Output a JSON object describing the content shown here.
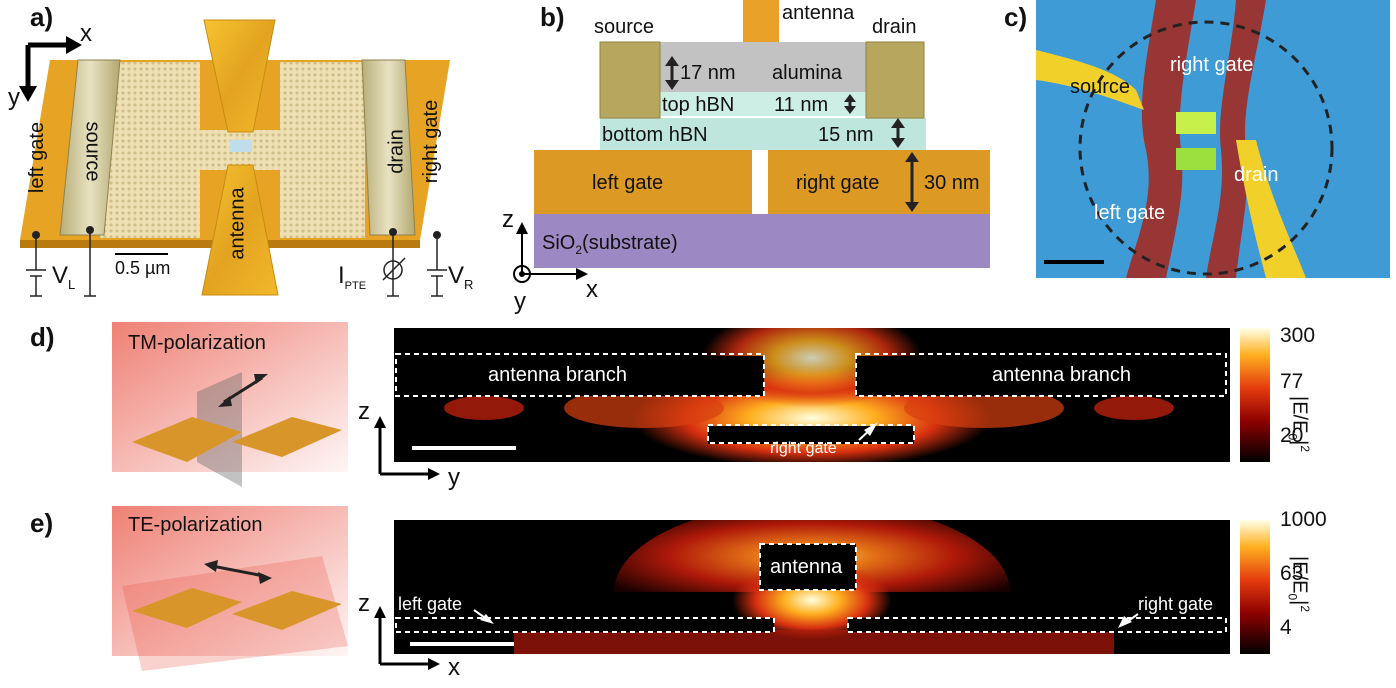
{
  "panels": {
    "a": {
      "label": "a)",
      "axis_x": "x",
      "axis_y": "y",
      "left_gate": "left gate",
      "source": "source",
      "antenna": "antenna",
      "drain": "drain",
      "right_gate": "right gate",
      "vl_main": "V",
      "vl_sub": "L",
      "vr_main": "V",
      "vr_sub": "R",
      "ipte_main": "I",
      "ipte_sub": "PTE",
      "scalebar": "0.5 µm"
    },
    "b": {
      "label": "b)",
      "antenna": "antenna",
      "source": "source",
      "drain": "drain",
      "t17": "17 nm",
      "alumina": "alumina",
      "top_hbn": "top hBN",
      "t11": "11 nm",
      "bottom_hbn": "bottom hBN",
      "t15": "15 nm",
      "left_gate": "left gate",
      "right_gate": "right gate",
      "t30": "30 nm",
      "substrate_pre": "SiO",
      "substrate_sub": "2",
      "substrate_post": "(substrate)",
      "axis_z": "z",
      "axis_y": "y",
      "axis_x": "x"
    },
    "c": {
      "label": "c)",
      "source": "source",
      "right_gate": "right gate",
      "drain": "drain",
      "left_gate": "left gate"
    },
    "d": {
      "label": "d)",
      "polarization": "TM-polarization",
      "branch_left": "antenna branch",
      "branch_right": "antenna branch",
      "right_gate": "right gate",
      "axis_z": "z",
      "axis_y": "y",
      "cb_ticks": [
        "300",
        "77",
        "20"
      ],
      "cb_title_main": "|E/E",
      "cb_title_sub": "0",
      "cb_title_end": "|",
      "cb_title_sup": "2"
    },
    "e": {
      "label": "e)",
      "polarization": "TE-polarization",
      "antenna": "antenna",
      "left_gate": "left gate",
      "right_gate": "right gate",
      "axis_z": "z",
      "axis_x": "x",
      "cb_ticks": [
        "1000",
        "63",
        "4"
      ],
      "cb_title_main": "|E/E",
      "cb_title_sub": "0",
      "cb_title_end": "|",
      "cb_title_sup": "2"
    }
  },
  "colors": {
    "gold": "#E8A62A",
    "electrode": "#C9BF8A",
    "alumina": "#BDBDBD",
    "hbn": "#BFE6DC",
    "substrate": "#9C89C4",
    "afm_bg": "#3E9BD6",
    "field_dark": "#000000",
    "field_hot": "#FFF7A0"
  }
}
